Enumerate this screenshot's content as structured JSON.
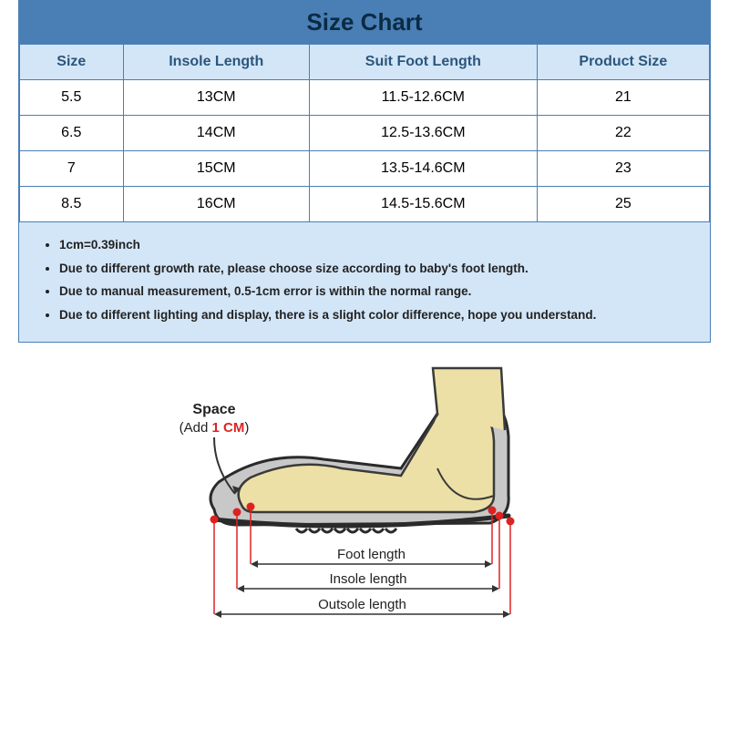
{
  "title": "Size Chart",
  "title_bg": "#4a7fb5",
  "title_color": "#0b2a44",
  "title_fontsize": 26,
  "header_bg": "#d3e6f8",
  "header_color": "#2b567c",
  "notes_bg": "#d3e6f8",
  "border_color": "#4a7fb5",
  "columns": [
    "Size",
    "Insole Length",
    "Suit Foot Length",
    "Product Size"
  ],
  "col_widths_pct": [
    15,
    27,
    33,
    25
  ],
  "rows": [
    [
      "5.5",
      "13CM",
      "11.5-12.6CM",
      "21"
    ],
    [
      "6.5",
      "14CM",
      "12.5-13.6CM",
      "22"
    ],
    [
      "7",
      "15CM",
      "13.5-14.6CM",
      "23"
    ],
    [
      "8.5",
      "16CM",
      "14.5-15.6CM",
      "25"
    ]
  ],
  "notes": [
    "1cm=0.39inch",
    "Due to different growth rate, please choose size according to baby's foot length.",
    "Due to manual measurement, 0.5-1cm error is within the normal range.",
    "Due to different lighting and display, there is a slight color difference, hope you understand."
  ],
  "diagram": {
    "labels": {
      "space": "Space",
      "space_sub_a": "(Add ",
      "space_sub_b": "1 CM",
      "space_sub_c": ")",
      "foot_len": "Foot length",
      "insole_len": "Insole length",
      "outsole_len": "Outsole length"
    },
    "colors": {
      "foot_fill": "#ede0a6",
      "foot_stroke": "#3a3a3a",
      "shoe_fill": "#c8c8c8",
      "shoe_stroke": "#2a2a2a",
      "marker": "#d22",
      "dim_line": "#333",
      "accent_text": "#d22",
      "label_text": "#222"
    },
    "font": {
      "label_size": 15,
      "space_size": 16
    }
  }
}
